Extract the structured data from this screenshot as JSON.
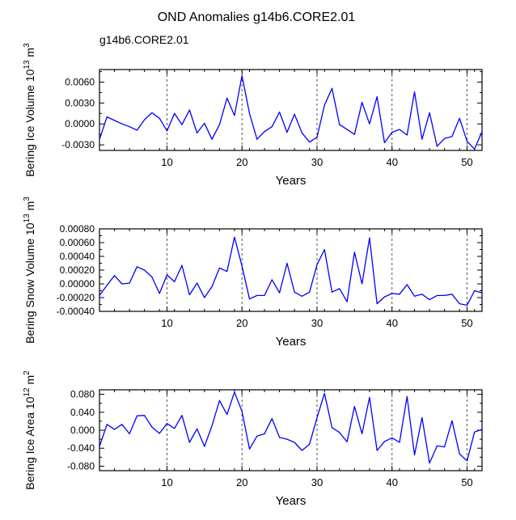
{
  "title": "OND Anomalies g14b6.CORE2.01",
  "subtitle": "g14b6.CORE2.01",
  "colors": {
    "line": "#0000ff",
    "subtitle": "#0000ff",
    "axis": "#000000",
    "refline": "#555555"
  },
  "chart_data": [
    {
      "type": "line",
      "xlabel": "Years",
      "ylabel": "Bering Ice Volume 10^13 m^3",
      "ylabel_parts": {
        "main": "Bering Ice Volume 10",
        "exp1": "13",
        "mid": " m",
        "exp2": "3"
      },
      "xlim": [
        1,
        52
      ],
      "ylim": [
        -0.0038,
        0.0078
      ],
      "xticks": [
        10,
        20,
        30,
        40,
        50
      ],
      "xtick_labels": [
        "10",
        "20",
        "30",
        "40",
        "50"
      ],
      "yticks": [
        -0.003,
        0.0,
        0.003,
        0.006
      ],
      "ytick_labels": [
        "-0.0030",
        "0.0000",
        "0.0030",
        "0.0060"
      ],
      "ref_lines_x": [
        10,
        20,
        30,
        40,
        50
      ],
      "x": [
        1,
        2,
        3,
        4,
        5,
        6,
        7,
        8,
        9,
        10,
        11,
        12,
        13,
        14,
        15,
        16,
        17,
        18,
        19,
        20,
        21,
        22,
        23,
        24,
        25,
        26,
        27,
        28,
        29,
        30,
        31,
        32,
        33,
        34,
        35,
        36,
        37,
        38,
        39,
        40,
        41,
        42,
        43,
        44,
        45,
        46,
        47,
        48,
        49,
        50,
        51,
        52
      ],
      "values": [
        -0.0022,
        0.001,
        0.0005,
        0.0,
        -0.0004,
        -0.0009,
        0.0006,
        0.0016,
        0.0008,
        -0.001,
        0.0015,
        -0.0001,
        0.002,
        -0.0013,
        0.0001,
        -0.0022,
        -0.0001,
        0.0037,
        0.0012,
        0.0069,
        0.0015,
        -0.0022,
        -0.0011,
        -0.0004,
        0.0017,
        -0.0012,
        0.0014,
        -0.0013,
        -0.0026,
        -0.0019,
        0.0027,
        0.0051,
        -0.0001,
        -0.0008,
        -0.0015,
        0.0031,
        0.0,
        0.0039,
        -0.0027,
        -0.0012,
        -0.0008,
        -0.0016,
        0.0046,
        -0.0022,
        0.0016,
        -0.0032,
        -0.0021,
        -0.0018,
        0.0008,
        -0.0025,
        -0.0036,
        -0.0011
      ]
    },
    {
      "type": "line",
      "xlabel": "Years",
      "ylabel": "Bering Snow Volume 10^13 m^3",
      "ylabel_parts": {
        "main": "Bering Snow Volume 10",
        "exp1": "13",
        "mid": " m",
        "exp2": "3"
      },
      "xlim": [
        1,
        52
      ],
      "ylim": [
        -0.0004,
        0.0008
      ],
      "xticks": [
        10,
        20,
        30,
        40,
        50
      ],
      "xtick_labels": [
        "10",
        "20",
        "30",
        "40",
        "50"
      ],
      "yticks": [
        -0.0004,
        -0.0002,
        0.0,
        0.0002,
        0.0004,
        0.0006,
        0.0008
      ],
      "ytick_labels": [
        "-0.00040",
        "-0.00020",
        "0.00000",
        "0.00020",
        "0.00040",
        "0.00060",
        "0.00080"
      ],
      "ref_lines_x": [
        10,
        20,
        30,
        40,
        50
      ],
      "x": [
        1,
        2,
        3,
        4,
        5,
        6,
        7,
        8,
        9,
        10,
        11,
        12,
        13,
        14,
        15,
        16,
        17,
        18,
        19,
        20,
        21,
        22,
        23,
        24,
        25,
        26,
        27,
        28,
        29,
        30,
        31,
        32,
        33,
        34,
        35,
        36,
        37,
        38,
        39,
        40,
        41,
        42,
        43,
        44,
        45,
        46,
        47,
        48,
        49,
        50,
        51,
        52
      ],
      "values": [
        -0.00017,
        -2e-05,
        0.00012,
        0.0,
        1e-05,
        0.00025,
        0.0002,
        0.0001,
        -0.00014,
        0.00013,
        3e-05,
        0.00027,
        -0.00016,
        1e-05,
        -0.0002,
        -4e-05,
        0.00023,
        0.00018,
        0.00068,
        0.00026,
        -0.00022,
        -0.00017,
        -0.00017,
        6e-05,
        -0.00013,
        0.0003,
        -0.00012,
        -0.00018,
        -0.00012,
        0.00028,
        0.0005,
        -0.00012,
        -7e-05,
        -0.00026,
        0.00046,
        0.0,
        0.00067,
        -0.00029,
        -0.00019,
        -0.00014,
        -0.00015,
        -1e-05,
        -0.00018,
        -0.00015,
        -0.00023,
        -0.00017,
        -0.00017,
        -0.00015,
        -0.00029,
        -0.00031,
        -0.0001,
        -0.00013
      ]
    },
    {
      "type": "line",
      "xlabel": "Years",
      "ylabel": "Bering Ice Area 10^12 m^2",
      "ylabel_parts": {
        "main": "Bering Ice Area 10",
        "exp1": "12",
        "mid": " m",
        "exp2": "2"
      },
      "xlim": [
        1,
        52
      ],
      "ylim": [
        -0.09,
        0.09
      ],
      "xticks": [
        10,
        20,
        30,
        40,
        50
      ],
      "xtick_labels": [
        "10",
        "20",
        "30",
        "40",
        "50"
      ],
      "yticks": [
        -0.08,
        -0.04,
        0.0,
        0.04,
        0.08
      ],
      "ytick_labels": [
        "-0.080",
        "-0.040",
        "0.000",
        "0.040",
        "0.080"
      ],
      "ref_lines_x": [
        10,
        20,
        30,
        40,
        50
      ],
      "x": [
        1,
        2,
        3,
        4,
        5,
        6,
        7,
        8,
        9,
        10,
        11,
        12,
        13,
        14,
        15,
        16,
        17,
        18,
        19,
        20,
        21,
        22,
        23,
        24,
        25,
        26,
        27,
        28,
        29,
        30,
        31,
        32,
        33,
        34,
        35,
        36,
        37,
        38,
        39,
        40,
        41,
        42,
        43,
        44,
        45,
        46,
        47,
        48,
        49,
        50,
        51,
        52
      ],
      "values": [
        -0.036,
        0.013,
        0.002,
        0.013,
        -0.008,
        0.032,
        0.033,
        0.007,
        -0.007,
        0.015,
        0.004,
        0.033,
        -0.027,
        0.003,
        -0.036,
        0.01,
        0.066,
        0.035,
        0.085,
        0.042,
        -0.042,
        -0.013,
        -0.008,
        0.026,
        -0.016,
        -0.02,
        -0.027,
        -0.045,
        -0.031,
        0.028,
        0.082,
        0.006,
        -0.005,
        -0.026,
        0.053,
        -0.008,
        0.073,
        -0.045,
        -0.025,
        -0.017,
        -0.027,
        0.075,
        -0.055,
        0.028,
        -0.073,
        -0.035,
        -0.037,
        0.021,
        -0.053,
        -0.068,
        -0.004,
        0.002
      ]
    }
  ]
}
